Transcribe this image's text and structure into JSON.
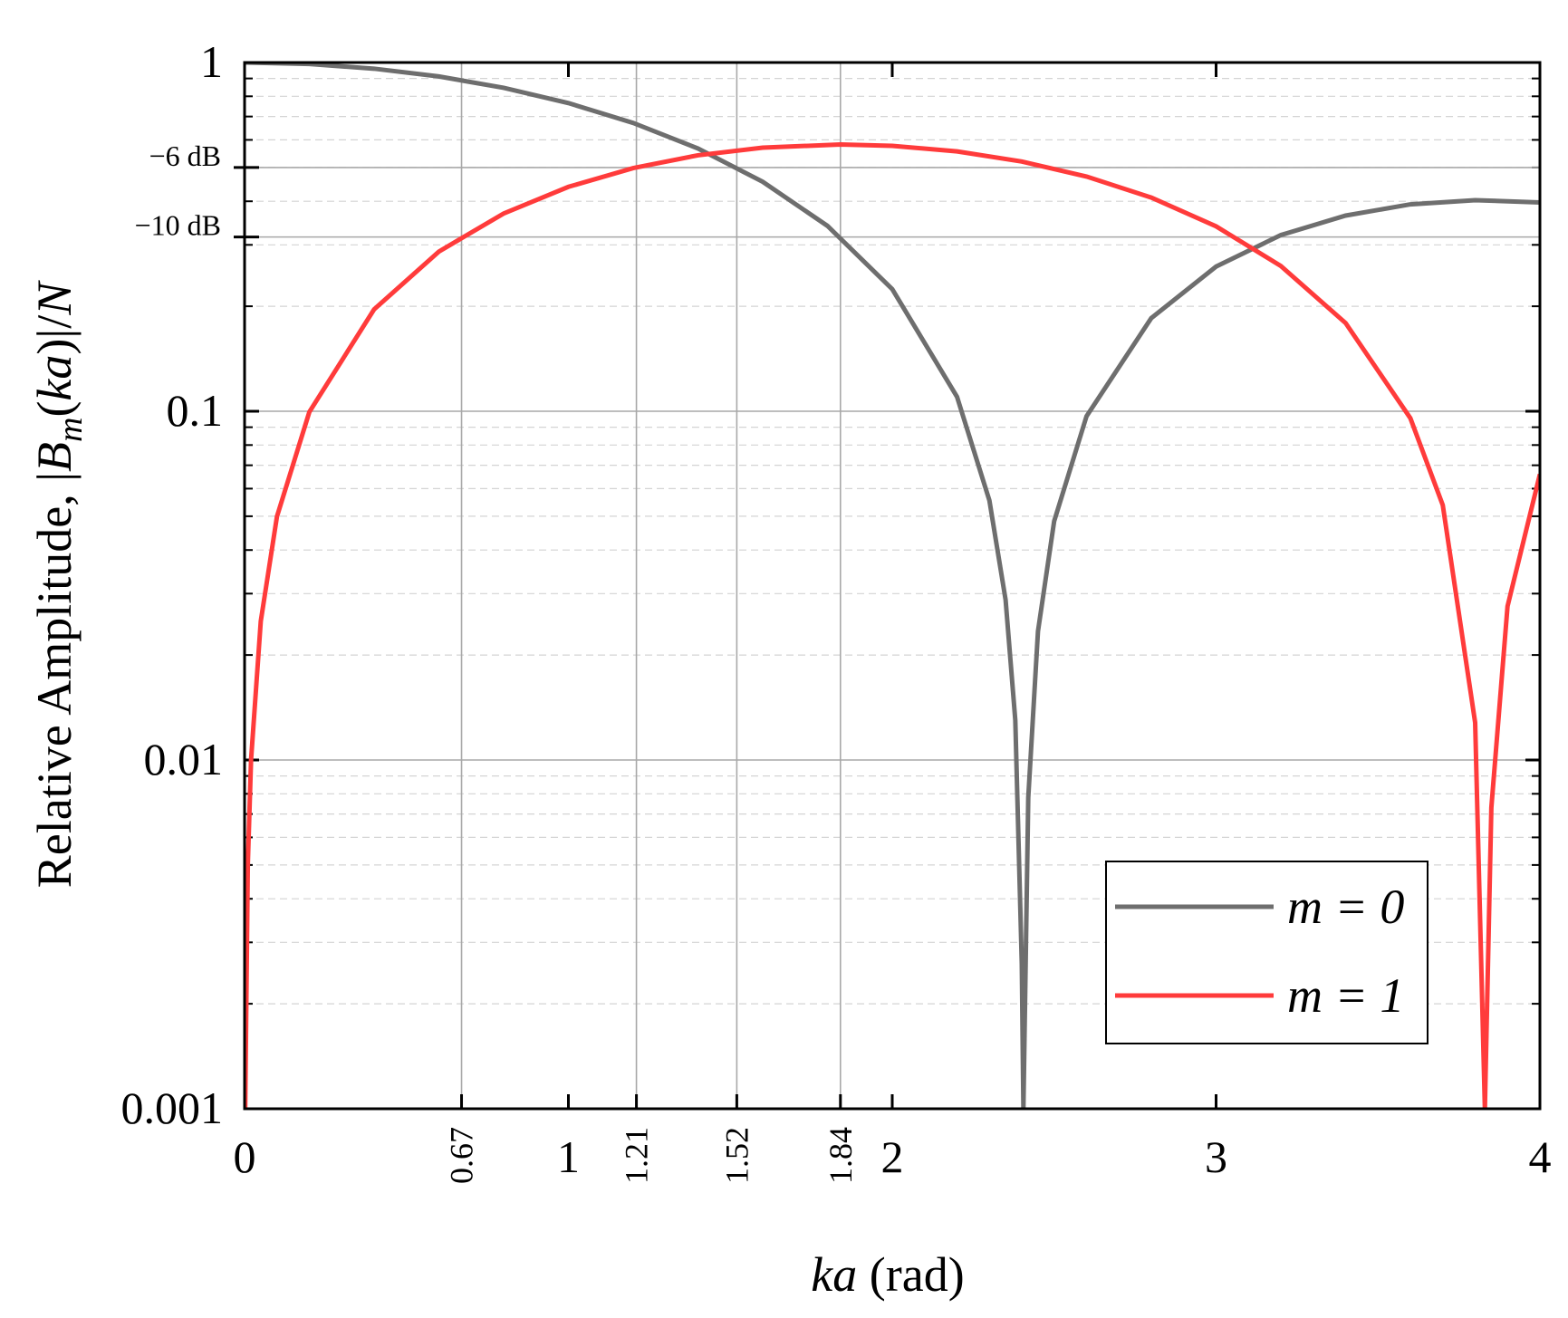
{
  "chart_data": {
    "type": "line",
    "xlabel": [
      "ka",
      " (rad)"
    ],
    "ylabel": [
      "Relative Amplitude, |",
      "B",
      "m",
      "(",
      "ka",
      ")|/",
      "N"
    ],
    "xlim": [
      0,
      4
    ],
    "xticks": [
      0,
      1,
      2,
      3,
      4
    ],
    "x_markers": [
      0.67,
      1.21,
      1.52,
      1.84
    ],
    "ylim": [
      0.001,
      1
    ],
    "log_y": true,
    "yticks": [
      0.001,
      0.01,
      0.1,
      1
    ],
    "y_markers": [
      {
        "value": 0.5,
        "label": "−6 dB"
      },
      {
        "value": 0.316,
        "label": "−10 dB"
      }
    ],
    "yminorticks": [
      0.002,
      0.003,
      0.004,
      0.005,
      0.006,
      0.007,
      0.008,
      0.009,
      0.02,
      0.03,
      0.04,
      0.05,
      0.06,
      0.07,
      0.08,
      0.09,
      0.2,
      0.3,
      0.4,
      0.5,
      0.6,
      0.7,
      0.8,
      0.9
    ],
    "legend": "lower right",
    "series": [
      {
        "name": "m = 0",
        "color": "#6e6e6e",
        "x": [
          0,
          0.2,
          0.4,
          0.6,
          0.8,
          1.0,
          1.2,
          1.4,
          1.6,
          1.8,
          2.0,
          2.2,
          2.3,
          2.35,
          2.38,
          2.4,
          2.405,
          2.42,
          2.45,
          2.5,
          2.6,
          2.8,
          3.0,
          3.2,
          3.4,
          3.6,
          3.8,
          4.0
        ],
        "values": [
          1,
          0.99,
          0.96,
          0.912,
          0.846,
          0.765,
          0.671,
          0.567,
          0.455,
          0.34,
          0.224,
          0.11,
          0.0555,
          0.0288,
          0.013,
          0.0026,
          0.001,
          0.0078,
          0.0234,
          0.0484,
          0.0968,
          0.185,
          0.26,
          0.32,
          0.364,
          0.392,
          0.403,
          0.397
        ]
      },
      {
        "name": "m = 1",
        "color": "#ff3b3b",
        "x": [
          0.002,
          0.01,
          0.02,
          0.05,
          0.1,
          0.2,
          0.4,
          0.6,
          0.8,
          1.0,
          1.2,
          1.4,
          1.6,
          1.84,
          2.0,
          2.2,
          2.4,
          2.6,
          2.8,
          3.0,
          3.2,
          3.4,
          3.6,
          3.7,
          3.8,
          3.83,
          3.85,
          3.9,
          4.0
        ],
        "values": [
          0.001,
          0.005,
          0.01,
          0.025,
          0.0499,
          0.0995,
          0.196,
          0.287,
          0.369,
          0.44,
          0.498,
          0.542,
          0.57,
          0.582,
          0.577,
          0.556,
          0.52,
          0.471,
          0.41,
          0.339,
          0.261,
          0.179,
          0.0955,
          0.0538,
          0.0128,
          0.001,
          0.0073,
          0.0276,
          0.066
        ]
      }
    ]
  }
}
